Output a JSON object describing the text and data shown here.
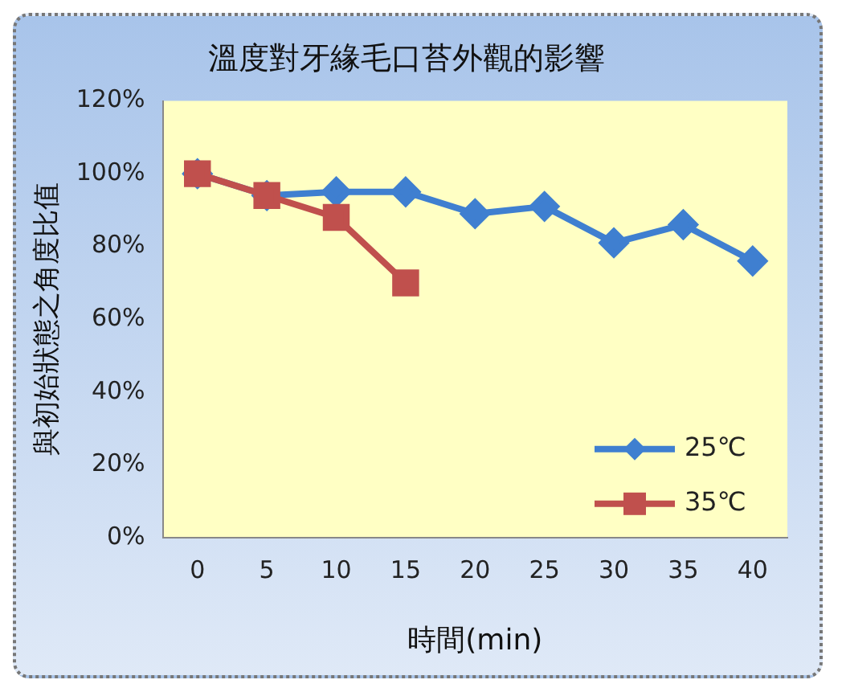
{
  "chart_data": {
    "type": "line",
    "title": "溫度對牙緣毛口苔外觀的影響",
    "xlabel": "時間(min)",
    "ylabel": "與初始狀態之角度比值",
    "categories": [
      "0",
      "5",
      "10",
      "15",
      "20",
      "25",
      "30",
      "35",
      "40"
    ],
    "series": [
      {
        "name": "25℃",
        "color": "#3f7fd0",
        "marker": "diamond",
        "values": [
          100,
          94,
          95,
          95,
          89,
          91,
          81,
          86,
          76
        ]
      },
      {
        "name": "35℃",
        "color": "#c0504d",
        "marker": "square",
        "values": [
          100,
          94,
          88,
          70,
          null,
          null,
          null,
          null,
          null
        ]
      }
    ],
    "ylim": [
      0,
      120
    ],
    "yticks": [
      {
        "value": 0,
        "label": "0%"
      },
      {
        "value": 20,
        "label": "20%"
      },
      {
        "value": 40,
        "label": "40%"
      },
      {
        "value": 60,
        "label": "60%"
      },
      {
        "value": 80,
        "label": "80%"
      },
      {
        "value": 100,
        "label": "100%"
      },
      {
        "value": 120,
        "label": "120%"
      }
    ],
    "grid": false,
    "legend": "bottom right",
    "line_style": "solid"
  }
}
